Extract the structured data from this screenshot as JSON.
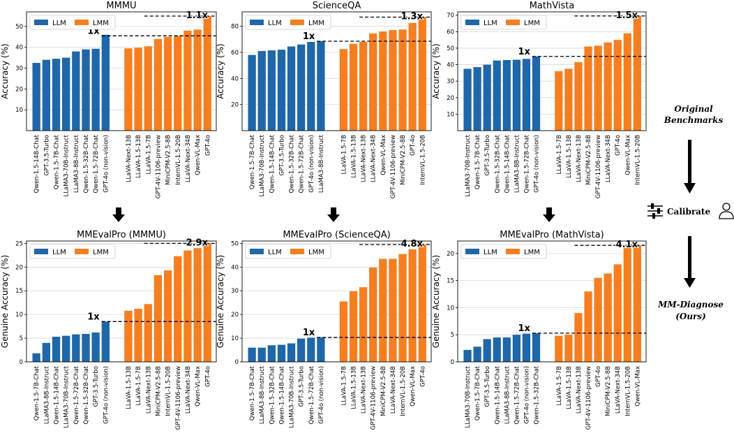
{
  "colors": {
    "llm": "#1f67a8",
    "lmm": "#f57f20"
  },
  "side": {
    "original": [
      "Original",
      "Benchmarks"
    ],
    "calibrate": "Calibrate",
    "diagnose": [
      "MM-Diagnose",
      "(Ours)"
    ]
  },
  "chart_data": [
    {
      "type": "bar",
      "title": "MMMU",
      "ylabel": "Accuracy (%)",
      "ylim": [
        0,
        57
      ],
      "yticks": [
        10,
        20,
        30,
        40,
        50
      ],
      "grid": true,
      "legend": {
        "position": "top-left",
        "entries": [
          "LLM",
          "LMM"
        ]
      },
      "series": [
        {
          "name": "LLM",
          "categories": [
            "Qwen-1.5-14B-Chat",
            "GPT-3.5-Turbo",
            "Qwen-1.5-7B-Chat",
            "LLaMA3-70B-Instruct",
            "LLaMA3-8B-Instruct",
            "Qwen-1.5-32B-Chat",
            "Qwen-1.5-72B-Chat",
            "GPT-4o (non-vision)"
          ],
          "values": [
            32.5,
            34.0,
            34.5,
            35.0,
            38.0,
            39.0,
            39.3,
            46.0
          ]
        },
        {
          "name": "LMM",
          "categories": [
            "LLaVA-Next-13B",
            "LLaVA-1.5-13B",
            "LLaVA-1.5-7B",
            "GPT-4V-1106-preview",
            "MiniCPM-V2.5-8B",
            "InternVL-1.5-20B",
            "LLaVA-Next-34B",
            "Qwen-VL-Max",
            "GPT-4o"
          ],
          "values": [
            39.5,
            39.8,
            40.5,
            44.0,
            45.0,
            45.5,
            48.0,
            48.5,
            55.0
          ]
        }
      ],
      "annotations": [
        {
          "text": "1x",
          "y": 45.5
        },
        {
          "text": "1.1x",
          "y": 55.0
        }
      ]
    },
    {
      "type": "bar",
      "title": "ScienceQA",
      "ylabel": "Accuracy (%)",
      "ylim": [
        0,
        91
      ],
      "yticks": [
        20,
        40,
        60,
        80
      ],
      "grid": true,
      "legend": {
        "position": "top-left",
        "entries": [
          "LLM",
          "LMM"
        ]
      },
      "series": [
        {
          "name": "LLM",
          "categories": [
            "Qwen-1.5-7B-Chat",
            "LLaMA3-70B-Instruct",
            "Qwen-1.5-14B-Chat",
            "GPT-3.5-Turbo",
            "Qwen-1.5-32B-Chat",
            "Qwen-1.5-72B-Chat",
            "GPT-4o (non-vision)",
            "LLaMA3-8B-Instruct"
          ],
          "values": [
            58.0,
            61.0,
            61.5,
            62.0,
            64.5,
            66.0,
            68.0,
            68.5
          ]
        },
        {
          "name": "LMM",
          "categories": [
            "LLaVA-1.5-7B",
            "LLaVA-1.5-13B",
            "LLaVA-Next-13B",
            "LLaVA-Next-34B",
            "Qwen-VL-Max",
            "GPT-4V-1106-preview",
            "MiniCPM-V2.5-8B",
            "GPT-4o",
            "InternVL-1.5-20B"
          ],
          "values": [
            62.5,
            66.5,
            68.0,
            74.5,
            76.0,
            77.0,
            77.5,
            82.5,
            87.0
          ]
        }
      ],
      "annotations": [
        {
          "text": "1x",
          "y": 68.5
        },
        {
          "text": "1.3x",
          "y": 87.0
        }
      ]
    },
    {
      "type": "bar",
      "title": "MathVista",
      "ylabel": "Accuracy (%)",
      "ylim": [
        0,
        72
      ],
      "yticks": [
        10,
        20,
        30,
        40,
        50,
        60,
        70
      ],
      "grid": true,
      "legend": {
        "position": "top-left",
        "entries": [
          "LLM",
          "LMM"
        ]
      },
      "series": [
        {
          "name": "LLM",
          "categories": [
            "LLaMA3-70B-Instruct",
            "Qwen-1.5-7B-Chat",
            "GPT-3.5-Turbo",
            "Qwen-1.5-32B-Chat",
            "Qwen-1.5-14B-Chat",
            "LLaMA3-8B-Instruct",
            "Qwen-1.5-72B-Chat",
            "GPT-4o (non-vision)"
          ],
          "values": [
            37.5,
            38.5,
            40.0,
            42.5,
            42.8,
            43.0,
            43.5,
            45.0
          ]
        },
        {
          "name": "LMM",
          "categories": [
            "LLaVA-1.5-7B",
            "LLaVA-1.5-13B",
            "LLaVA-Next-13B",
            "MiniCPM-V2.5-8B",
            "GPT-4V-1106-preview",
            "LLaVA-Next-34B",
            "GPT-4o",
            "Qwen-VL-Max",
            "InternVL-1.5-20B"
          ],
          "values": [
            36.0,
            37.5,
            41.5,
            51.0,
            51.5,
            53.5,
            55.0,
            59.0,
            69.5
          ]
        }
      ],
      "annotations": [
        {
          "text": "1x",
          "y": 45.0
        },
        {
          "text": "1.5x",
          "y": 69.5
        }
      ]
    },
    {
      "type": "bar",
      "title": "MMEvalPro (MMMU)",
      "ylabel": "Genuine Accuracy (%)",
      "ylim": [
        0,
        25.5
      ],
      "yticks": [
        0,
        5,
        10,
        15,
        20,
        25
      ],
      "grid": true,
      "legend": {
        "position": "top-left",
        "entries": [
          "LLM",
          "LMM"
        ]
      },
      "series": [
        {
          "name": "LLM",
          "categories": [
            "Qwen-1.5-7B-Chat",
            "LLaMA3-8B-Instruct",
            "Qwen-1.5-14B-Chat",
            "LLaMA3-70B-Instruct",
            "Qwen-1.5-72B-Chat",
            "Qwen-1.5-32B-Chat",
            "GPT-3.5-Turbo",
            "GPT-4o (non-vision)"
          ],
          "values": [
            1.8,
            4.0,
            5.3,
            5.5,
            5.8,
            5.9,
            6.2,
            8.5
          ]
        },
        {
          "name": "LMM",
          "categories": [
            "LLaVA-1.5-13B",
            "LLaVA-1.5-7B",
            "LLaVA-Next-13B",
            "MiniCPM-V2.5-8B",
            "InternVL-1.5-20B",
            "GPT-4V-1106-preview",
            "LLaVA-Next-34B",
            "Qwen-VL-Max",
            "GPT-4o"
          ],
          "values": [
            10.8,
            11.2,
            12.2,
            18.3,
            19.3,
            22.3,
            23.5,
            24.0,
            25.0
          ]
        }
      ],
      "annotations": [
        {
          "text": "1x",
          "y": 8.5
        },
        {
          "text": "2.9x",
          "y": 25.0
        }
      ]
    },
    {
      "type": "bar",
      "title": "MMEvalPro (ScienceQA)",
      "ylabel": "Genuine Accuracy (%)",
      "ylim": [
        0,
        51
      ],
      "yticks": [
        0,
        10,
        20,
        30,
        40,
        50
      ],
      "grid": true,
      "legend": {
        "position": "top-left",
        "entries": [
          "LLM",
          "LMM"
        ]
      },
      "series": [
        {
          "name": "LLM",
          "categories": [
            "Qwen-1.5-7B-Chat",
            "LLaMA3-8B-Instruct",
            "Qwen-1.5-32B-Chat",
            "Qwen-1.5-14B-Chat",
            "LLaMA3-70B-Instruct",
            "GPT-3.5-Turbo",
            "Qwen-1.5-72B-Chat",
            "GPT-4o (non-vision)"
          ],
          "values": [
            6.0,
            6.0,
            7.0,
            7.2,
            7.8,
            9.8,
            10.2,
            10.3
          ]
        },
        {
          "name": "LMM",
          "categories": [
            "LLaVA-1.5-7B",
            "LLaVA-1.5-13B",
            "LLaVA-Next-13B",
            "GPT-4V-1106-preview",
            "MiniCPM-V2.5-8B",
            "LLaVA-Next-34B",
            "InternVL-1.5-20B",
            "Qwen-VL-Max",
            "GPT-4o"
          ],
          "values": [
            25.5,
            29.8,
            31.5,
            39.8,
            43.5,
            43.5,
            45.5,
            47.5,
            49.5
          ]
        }
      ],
      "annotations": [
        {
          "text": "1x",
          "y": 10.3
        },
        {
          "text": "4.8x",
          "y": 49.5
        }
      ]
    },
    {
      "type": "bar",
      "title": "MMEvalPro (MathVista)",
      "ylabel": "Genuine Accuracy (%)",
      "ylim": [
        0,
        22.3
      ],
      "yticks": [
        0,
        5,
        10,
        15,
        20
      ],
      "grid": true,
      "legend": {
        "position": "top-left",
        "entries": [
          "LLM",
          "LMM"
        ]
      },
      "series": [
        {
          "name": "LLM",
          "categories": [
            "LLaMA3-70B-Instruct",
            "Qwen-1.5-7B-Chat",
            "GPT-3.5-Turbo",
            "Qwen-1.5-14B-Chat",
            "LLaMA3-8B-Instruct",
            "Qwen-1.5-72B-Chat",
            "GPT-4o (non-vision)",
            "Qwen-1.5-32B-Chat"
          ],
          "values": [
            2.2,
            2.8,
            4.2,
            4.5,
            4.5,
            5.0,
            5.2,
            5.3
          ]
        },
        {
          "name": "LMM",
          "categories": [
            "LLaVA-1.5-7B",
            "LLaVA-1.5-13B",
            "LLaVA-Next-13B",
            "GPT-4V-1106-preview",
            "GPT-4o",
            "MiniCPM-V2.5-8B",
            "LLaVA-Next-34B",
            "InternVL-1.5-20B",
            "Qwen-VL-Max"
          ],
          "values": [
            4.8,
            5.0,
            9.0,
            13.0,
            15.5,
            16.3,
            18.0,
            21.0,
            21.5
          ]
        }
      ],
      "annotations": [
        {
          "text": "1x",
          "y": 5.3
        },
        {
          "text": "4.1x",
          "y": 21.5
        }
      ]
    }
  ]
}
